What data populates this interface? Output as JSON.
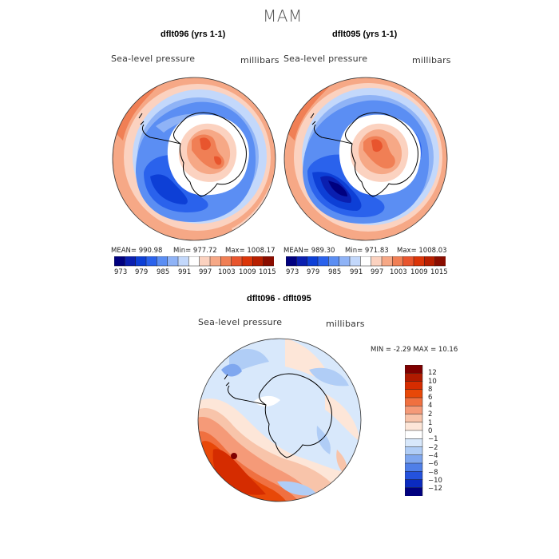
{
  "figure": {
    "title": "MAM"
  },
  "panels": [
    {
      "title": "dflt096 (yrs 1-1)",
      "variable": "Sea-level pressure",
      "units": "millibars",
      "stats": {
        "mean": "MEAN= 990.98",
        "min": "Min= 977.72",
        "max": "Max= 1008.17"
      }
    },
    {
      "title": "dflt095 (yrs 1-1)",
      "variable": "Sea-level pressure",
      "units": "millibars",
      "stats": {
        "mean": "MEAN= 989.30",
        "min": "Min= 971.83",
        "max": "Max= 1008.03"
      }
    }
  ],
  "shared_colorbar": {
    "tick_labels": [
      "973",
      "979",
      "985",
      "991",
      "997",
      "1003",
      "1009",
      "1015"
    ],
    "colors": [
      "#00007f",
      "#0a1fb0",
      "#0d3fd6",
      "#2a62ec",
      "#5b8ef3",
      "#8fb3f6",
      "#c3d8fb",
      "#ffffff",
      "#fbd2c0",
      "#f6a886",
      "#f07f55",
      "#e8552e",
      "#db3509",
      "#b81f00",
      "#8a0d00"
    ]
  },
  "diff_panel": {
    "title": "dflt096 - dflt095",
    "variable": "Sea-level pressure",
    "units": "millibars",
    "min_max": "MIN =   -2.29 MAX =   10.16",
    "colorbar": {
      "labels": [
        "12",
        "10",
        "8",
        "6",
        "4",
        "2",
        "1",
        "0",
        "−1",
        "−2",
        "−4",
        "−6",
        "−8",
        "−10",
        "−12"
      ],
      "colors": [
        "#7f0000",
        "#b01a00",
        "#d52c00",
        "#e84808",
        "#f07040",
        "#f59a78",
        "#f8c4aa",
        "#fde6d8",
        "#ffffff",
        "#d8e8fb",
        "#b0cdf6",
        "#7fa7ef",
        "#4f7fe8",
        "#2452dd",
        "#0b2bc0",
        "#00007f"
      ]
    }
  },
  "legend_colors": {
    "deep_blue": "#0a1fb0",
    "mid_blue": "#5b8ef3",
    "light_blue": "#c3d8fb",
    "orange": "#f07f55",
    "red": "#db3509"
  }
}
